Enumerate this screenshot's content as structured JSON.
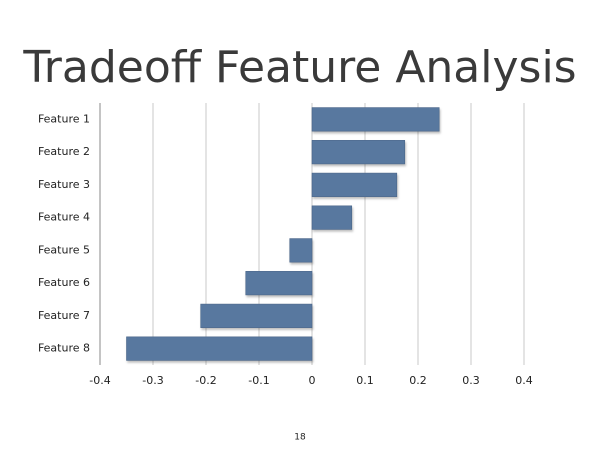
{
  "chart_data": {
    "type": "barh",
    "title": "Tradeoff Feature Analysis",
    "categories": [
      "Feature 1",
      "Feature 2",
      "Feature 3",
      "Feature 4",
      "Feature 5",
      "Feature 6",
      "Feature 7",
      "Feature 8"
    ],
    "values": [
      0.24,
      0.175,
      0.16,
      0.075,
      -0.042,
      -0.125,
      -0.21,
      -0.35
    ],
    "color": "#58789f",
    "xlim": [
      -0.4,
      0.4
    ],
    "xticks": [
      -0.4,
      -0.3,
      -0.2,
      -0.1,
      0,
      0.1,
      0.2,
      0.3,
      0.4
    ],
    "grid": true
  },
  "page_number": "18"
}
